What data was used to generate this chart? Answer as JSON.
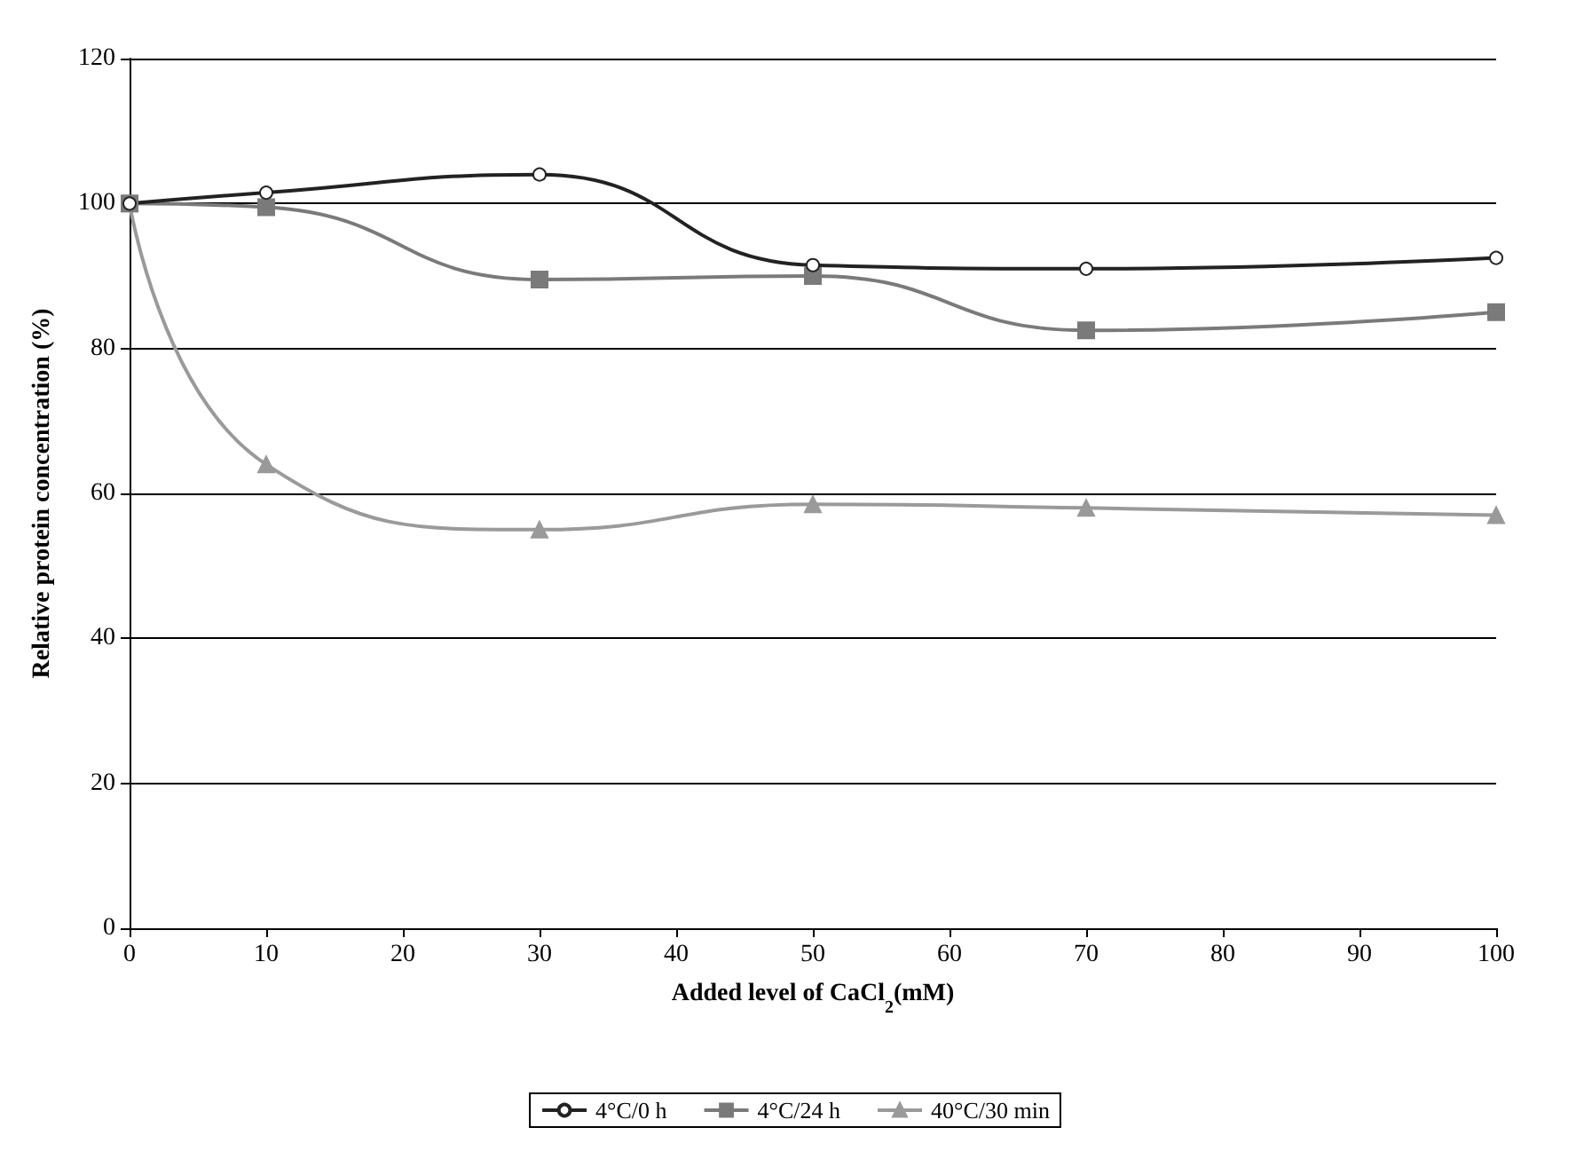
{
  "chart_data": {
    "type": "line",
    "xlabel": "Added level of CaCl$_{2}$(mM)",
    "ylabel": "Relative protein concentration (%)",
    "x": [
      0,
      10,
      30,
      50,
      70,
      100
    ],
    "series": [
      {
        "name": "4°C/0 h",
        "color": "#222222",
        "marker": "circle",
        "values": [
          100,
          101.5,
          104,
          91.5,
          91,
          92.5
        ]
      },
      {
        "name": "4°C/24 h",
        "color": "#7a7a7a",
        "marker": "square",
        "values": [
          100,
          99.5,
          89.5,
          90,
          82.5,
          85
        ]
      },
      {
        "name": "40°C/30 min",
        "color": "#9a9a9a",
        "marker": "triangle",
        "values": [
          100,
          64,
          55,
          58.5,
          58,
          57
        ]
      }
    ],
    "xlim": [
      0,
      100
    ],
    "xticks": [
      0,
      10,
      20,
      30,
      40,
      50,
      60,
      70,
      80,
      90,
      100
    ],
    "ylim": [
      0,
      120
    ],
    "yticks": [
      0,
      20,
      40,
      60,
      80,
      100,
      120
    ],
    "grid": "y",
    "legend": "bottom"
  }
}
